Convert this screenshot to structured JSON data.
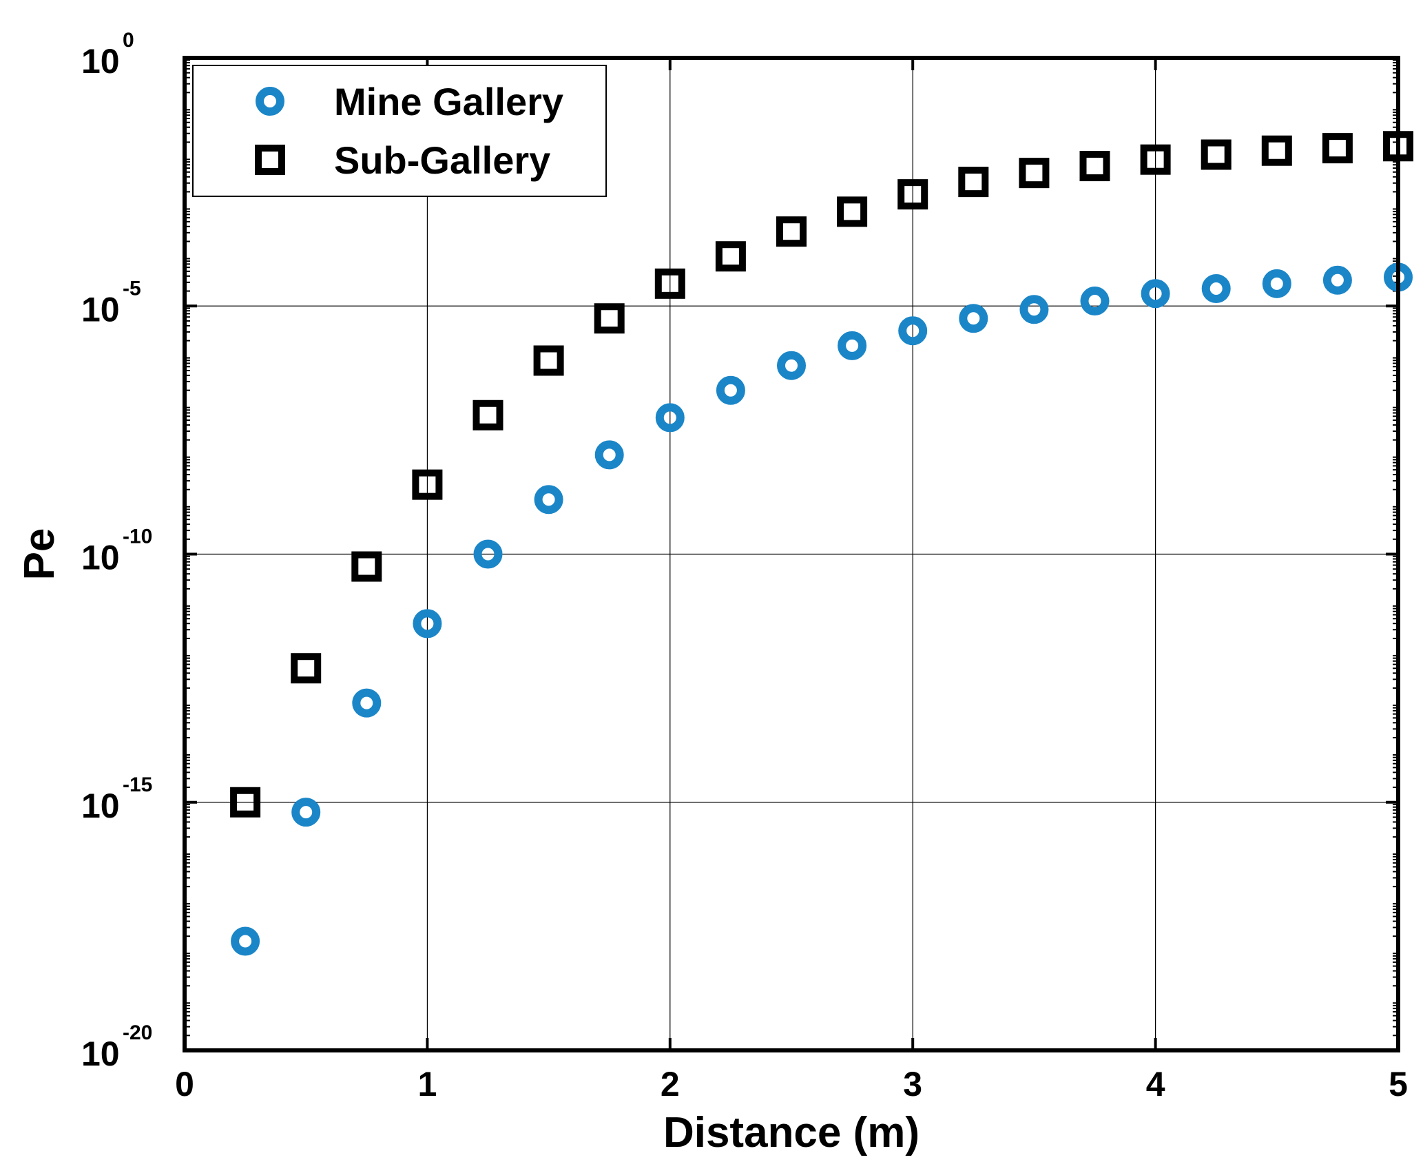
{
  "chart_data": {
    "type": "scatter",
    "xlabel": "Distance (m)",
    "ylabel": "Pe",
    "xlim": [
      0,
      5
    ],
    "ylim_log10": [
      -20,
      0
    ],
    "yscale": "log",
    "grid": true,
    "legend_position": "top-left",
    "x_ticks": [
      "0",
      "1",
      "2",
      "3",
      "4",
      "5"
    ],
    "y_ticks": [
      {
        "base": "10",
        "exp": "0",
        "value": 0
      },
      {
        "base": "10",
        "exp": "-5",
        "value": -5
      },
      {
        "base": "10",
        "exp": "-10",
        "value": -10
      },
      {
        "base": "10",
        "exp": "-15",
        "value": -15
      },
      {
        "base": "10",
        "exp": "-20",
        "value": -20
      }
    ],
    "x": [
      0.25,
      0.5,
      0.75,
      1.0,
      1.25,
      1.5,
      1.75,
      2.0,
      2.25,
      2.5,
      2.75,
      3.0,
      3.25,
      3.5,
      3.75,
      4.0,
      4.25,
      4.5,
      4.75,
      5.0
    ],
    "series": [
      {
        "name": "Mine Gallery",
        "marker": "circle",
        "color": "#1a86c8",
        "log10_values": [
          -17.8,
          -15.2,
          -13.0,
          -11.4,
          -10.0,
          -8.9,
          -8.0,
          -7.25,
          -6.7,
          -6.2,
          -5.8,
          -5.5,
          -5.25,
          -5.07,
          -4.9,
          -4.75,
          -4.65,
          -4.55,
          -4.48,
          -4.42
        ]
      },
      {
        "name": "Sub-Gallery",
        "marker": "square",
        "color": "#000000",
        "log10_values": [
          -15.0,
          -12.3,
          -10.25,
          -8.6,
          -7.2,
          -6.1,
          -5.25,
          -4.55,
          -4.0,
          -3.5,
          -3.1,
          -2.75,
          -2.5,
          -2.32,
          -2.18,
          -2.05,
          -1.95,
          -1.87,
          -1.82,
          -1.78
        ]
      }
    ]
  }
}
